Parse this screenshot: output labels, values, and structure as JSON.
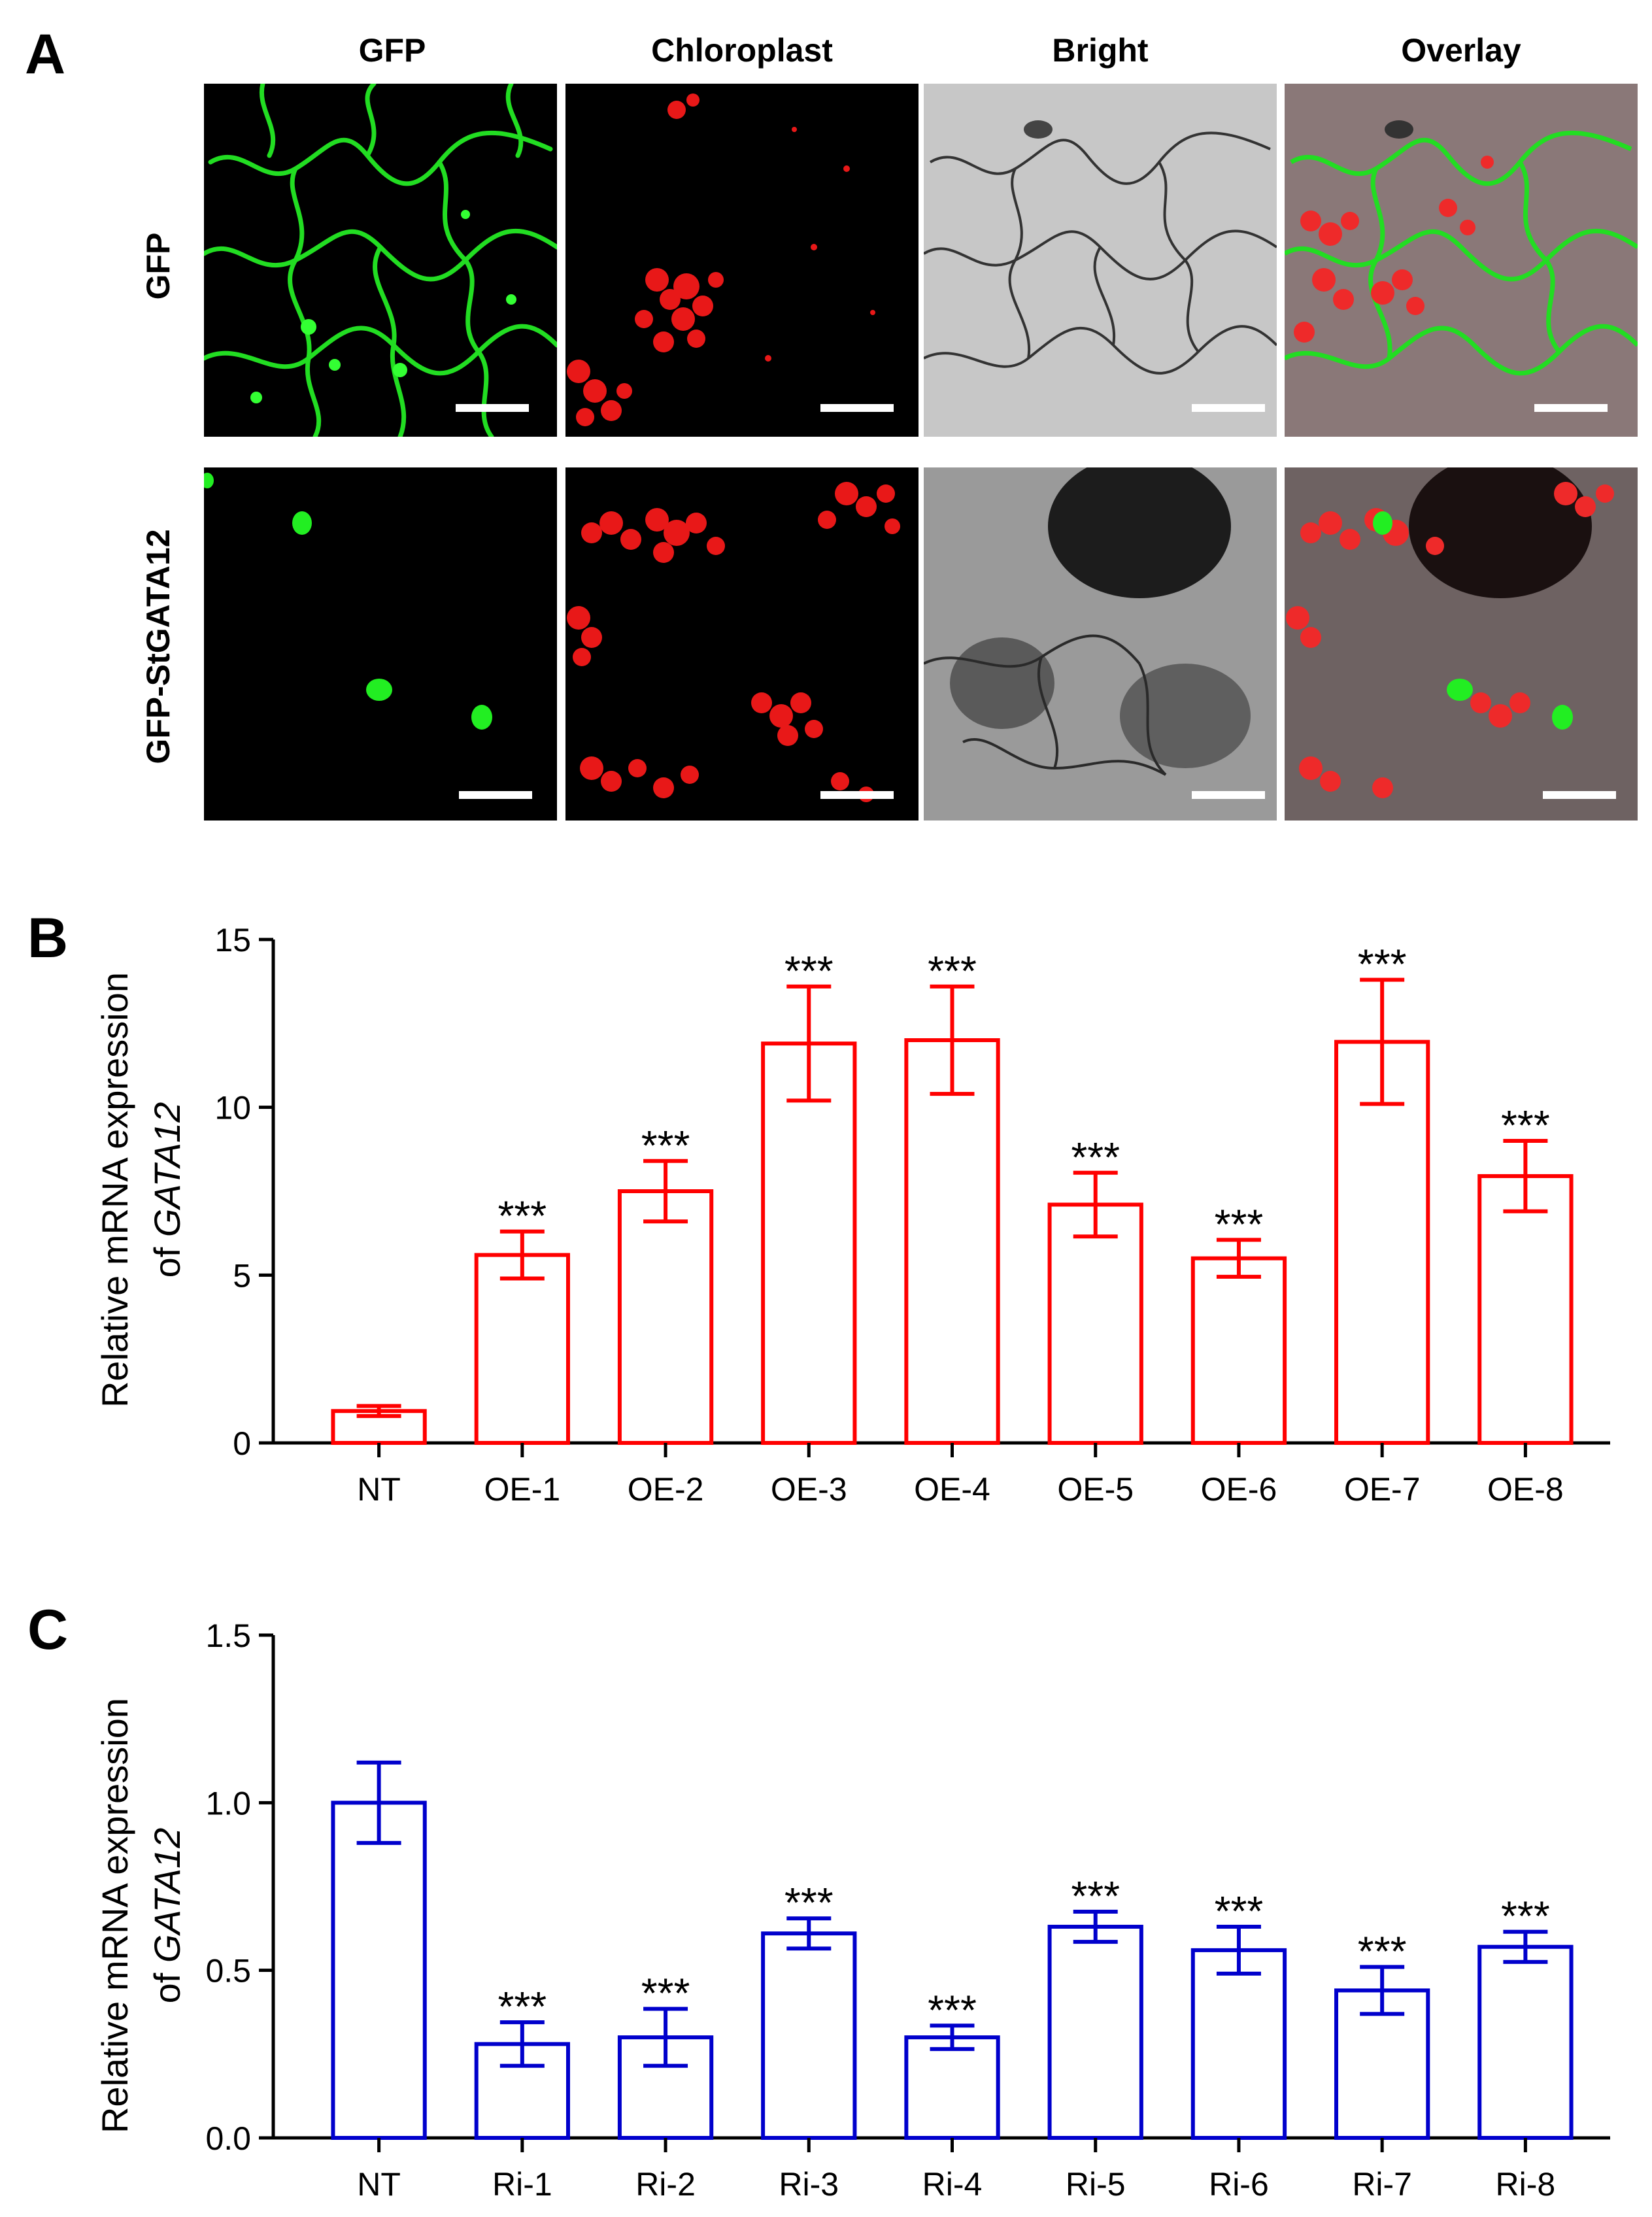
{
  "panel_a": {
    "letter": "A",
    "columns": [
      "GFP",
      "Chloroplast",
      "Bright",
      "Overlay"
    ],
    "rows": [
      "GFP",
      "GFP-StGATA12"
    ],
    "colors": {
      "gfp": "#22dd22",
      "chloroplast": "#e81818",
      "background": "#000000"
    }
  },
  "chart_data": [
    {
      "panel": "B",
      "type": "bar",
      "ylabel_line1": "Relative mRNA expression",
      "ylabel_prefix": "of ",
      "ylabel_gene": "GATA12",
      "categories": [
        "NT",
        "OE-1",
        "OE-2",
        "OE-3",
        "OE-4",
        "OE-5",
        "OE-6",
        "OE-7",
        "OE-8"
      ],
      "values": [
        0.95,
        5.6,
        7.5,
        11.9,
        12.0,
        7.1,
        5.5,
        11.95,
        7.95
      ],
      "errors": [
        0.15,
        0.7,
        0.9,
        1.7,
        1.6,
        0.95,
        0.55,
        1.85,
        1.05
      ],
      "significance": [
        "",
        "***",
        "***",
        "***",
        "***",
        "***",
        "***",
        "***",
        "***"
      ],
      "ylim": [
        0,
        15
      ],
      "yticks": [
        0,
        5,
        10,
        15
      ],
      "ytick_labels": [
        "0",
        "5",
        "10",
        "15"
      ],
      "color": "#ff0000"
    },
    {
      "panel": "C",
      "type": "bar",
      "ylabel_line1": "Relative mRNA expression",
      "ylabel_prefix": "of ",
      "ylabel_gene": "GATA12",
      "categories": [
        "NT",
        "Ri-1",
        "Ri-2",
        "Ri-3",
        "Ri-4",
        "Ri-5",
        "Ri-6",
        "Ri-7",
        "Ri-8"
      ],
      "values": [
        1.0,
        0.28,
        0.3,
        0.61,
        0.3,
        0.63,
        0.56,
        0.44,
        0.57
      ],
      "errors": [
        0.12,
        0.065,
        0.085,
        0.045,
        0.035,
        0.045,
        0.07,
        0.07,
        0.045
      ],
      "significance": [
        "",
        "***",
        "***",
        "***",
        "***",
        "***",
        "***",
        "***",
        "***"
      ],
      "ylim": [
        0,
        1.5
      ],
      "yticks": [
        0,
        0.5,
        1.0,
        1.5
      ],
      "ytick_labels": [
        "0.0",
        "0.5",
        "1.0",
        "1.5"
      ],
      "color": "#0000cc"
    }
  ]
}
